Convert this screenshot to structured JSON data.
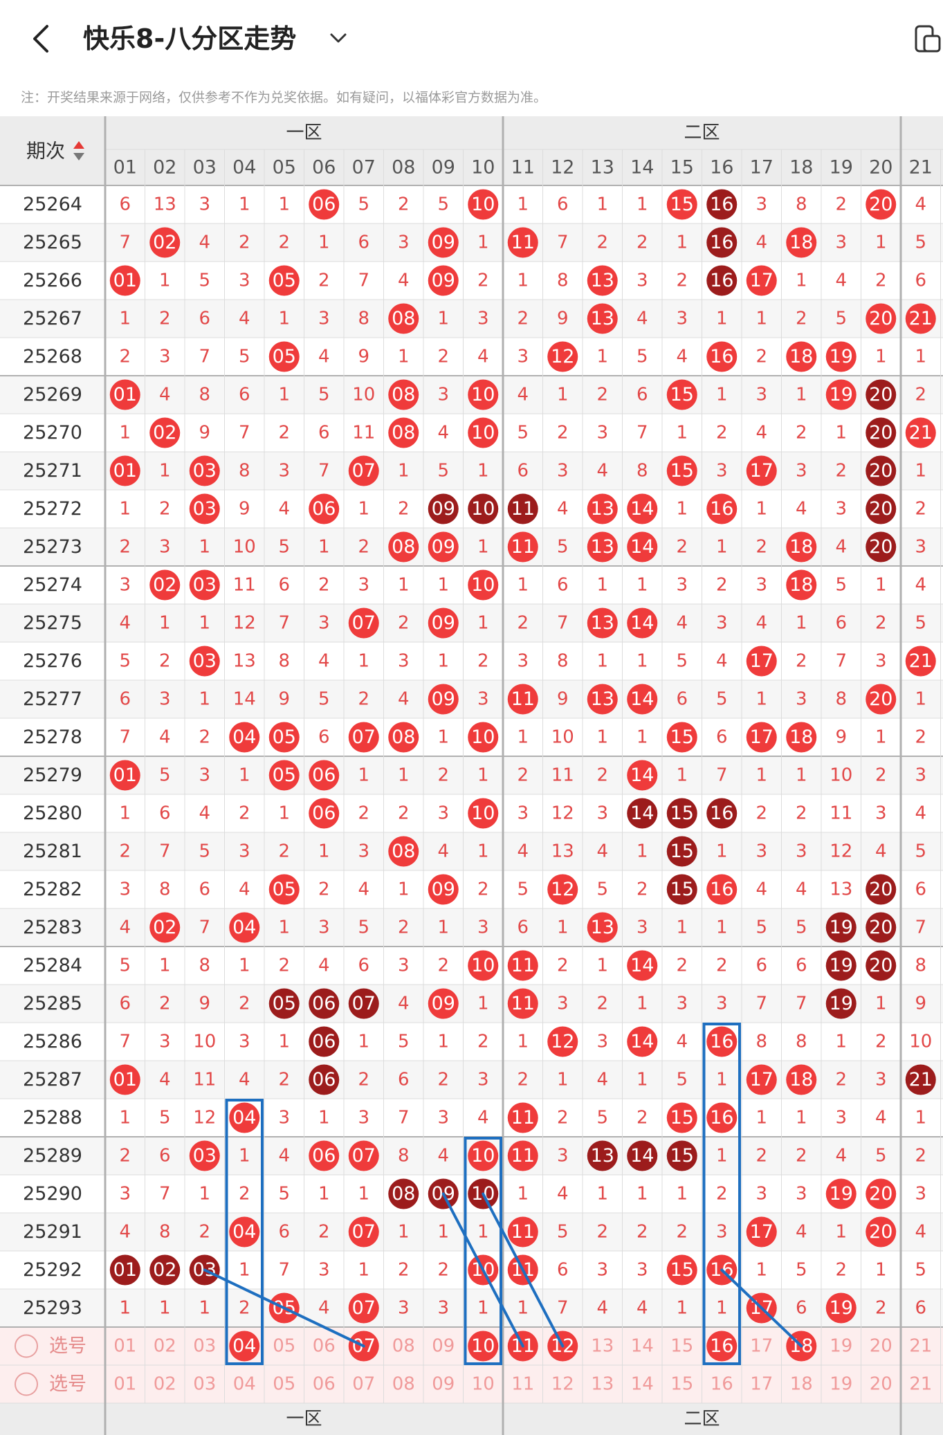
{
  "header": {
    "title": "快乐8-八分区走势",
    "notice": "注：开奖结果来源于网络，仅供参考不作为兑奖依据。如有疑问，以福体彩官方数据为准。"
  },
  "table": {
    "period_header": "期次",
    "zones": [
      "一区",
      "二区"
    ],
    "columns": [
      "01",
      "02",
      "03",
      "04",
      "05",
      "06",
      "07",
      "08",
      "09",
      "10",
      "11",
      "12",
      "13",
      "14",
      "15",
      "16",
      "17",
      "18",
      "19",
      "20",
      "21"
    ],
    "rows": [
      {
        "period": "25264",
        "cells": [
          "6",
          "13",
          "3",
          "1",
          "1",
          "06",
          "5",
          "2",
          "5",
          "10",
          "1",
          "6",
          "1",
          "1",
          "15",
          "16",
          "3",
          "8",
          "2",
          "20",
          "4"
        ],
        "hits": [
          6,
          10,
          15,
          16,
          20
        ],
        "dark": [
          16
        ]
      },
      {
        "period": "25265",
        "cells": [
          "7",
          "02",
          "4",
          "2",
          "2",
          "1",
          "6",
          "3",
          "09",
          "1",
          "11",
          "7",
          "2",
          "2",
          "1",
          "16",
          "4",
          "18",
          "3",
          "1",
          "5"
        ],
        "hits": [
          2,
          9,
          11,
          16,
          18
        ],
        "dark": [
          16
        ]
      },
      {
        "period": "25266",
        "cells": [
          "01",
          "1",
          "5",
          "3",
          "05",
          "2",
          "7",
          "4",
          "09",
          "2",
          "1",
          "8",
          "13",
          "3",
          "2",
          "16",
          "17",
          "1",
          "4",
          "2",
          "6"
        ],
        "hits": [
          1,
          5,
          9,
          13,
          16,
          17
        ],
        "dark": [
          16
        ]
      },
      {
        "period": "25267",
        "cells": [
          "1",
          "2",
          "6",
          "4",
          "1",
          "3",
          "8",
          "08",
          "1",
          "3",
          "2",
          "9",
          "13",
          "4",
          "3",
          "1",
          "1",
          "2",
          "5",
          "20",
          "21"
        ],
        "hits": [
          8,
          13,
          20,
          21
        ],
        "dark": []
      },
      {
        "period": "25268",
        "cells": [
          "2",
          "3",
          "7",
          "5",
          "05",
          "4",
          "9",
          "1",
          "2",
          "4",
          "3",
          "12",
          "1",
          "5",
          "4",
          "16",
          "2",
          "18",
          "19",
          "1",
          "1"
        ],
        "hits": [
          5,
          12,
          16,
          18,
          19
        ],
        "dark": []
      },
      {
        "period": "25269",
        "cells": [
          "01",
          "4",
          "8",
          "6",
          "1",
          "5",
          "10",
          "08",
          "3",
          "10",
          "4",
          "1",
          "2",
          "6",
          "15",
          "1",
          "3",
          "1",
          "19",
          "20",
          "2"
        ],
        "hits": [
          1,
          8,
          10,
          15,
          19,
          20
        ],
        "dark": [
          20
        ]
      },
      {
        "period": "25270",
        "cells": [
          "1",
          "02",
          "9",
          "7",
          "2",
          "6",
          "11",
          "08",
          "4",
          "10",
          "5",
          "2",
          "3",
          "7",
          "1",
          "2",
          "4",
          "2",
          "1",
          "20",
          "21"
        ],
        "hits": [
          2,
          8,
          10,
          20,
          21
        ],
        "dark": [
          20
        ]
      },
      {
        "period": "25271",
        "cells": [
          "01",
          "1",
          "03",
          "8",
          "3",
          "7",
          "07",
          "1",
          "5",
          "1",
          "6",
          "3",
          "4",
          "8",
          "15",
          "3",
          "17",
          "3",
          "2",
          "20",
          "1"
        ],
        "hits": [
          1,
          3,
          7,
          15,
          17,
          20
        ],
        "dark": [
          20
        ]
      },
      {
        "period": "25272",
        "cells": [
          "1",
          "2",
          "03",
          "9",
          "4",
          "06",
          "1",
          "2",
          "09",
          "10",
          "11",
          "4",
          "13",
          "14",
          "1",
          "16",
          "1",
          "4",
          "3",
          "20",
          "2"
        ],
        "hits": [
          3,
          6,
          9,
          10,
          11,
          13,
          14,
          16,
          20
        ],
        "dark": [
          9,
          10,
          11,
          20
        ]
      },
      {
        "period": "25273",
        "cells": [
          "2",
          "3",
          "1",
          "10",
          "5",
          "1",
          "2",
          "08",
          "09",
          "1",
          "11",
          "5",
          "13",
          "14",
          "2",
          "1",
          "2",
          "18",
          "4",
          "20",
          "3"
        ],
        "hits": [
          8,
          9,
          11,
          13,
          14,
          18,
          20
        ],
        "dark": [
          20
        ]
      },
      {
        "period": "25274",
        "cells": [
          "3",
          "02",
          "03",
          "11",
          "6",
          "2",
          "3",
          "1",
          "1",
          "10",
          "1",
          "6",
          "1",
          "1",
          "3",
          "2",
          "3",
          "18",
          "5",
          "1",
          "4"
        ],
        "hits": [
          2,
          3,
          10,
          18
        ],
        "dark": []
      },
      {
        "period": "25275",
        "cells": [
          "4",
          "1",
          "1",
          "12",
          "7",
          "3",
          "07",
          "2",
          "09",
          "1",
          "2",
          "7",
          "13",
          "14",
          "4",
          "3",
          "4",
          "1",
          "6",
          "2",
          "5"
        ],
        "hits": [
          7,
          9,
          13,
          14
        ],
        "dark": []
      },
      {
        "period": "25276",
        "cells": [
          "5",
          "2",
          "03",
          "13",
          "8",
          "4",
          "1",
          "3",
          "1",
          "2",
          "3",
          "8",
          "1",
          "1",
          "5",
          "4",
          "17",
          "2",
          "7",
          "3",
          "21"
        ],
        "hits": [
          3,
          17,
          21
        ],
        "dark": []
      },
      {
        "period": "25277",
        "cells": [
          "6",
          "3",
          "1",
          "14",
          "9",
          "5",
          "2",
          "4",
          "09",
          "3",
          "11",
          "9",
          "13",
          "14",
          "6",
          "5",
          "1",
          "3",
          "8",
          "20",
          "1"
        ],
        "hits": [
          9,
          11,
          13,
          14,
          20
        ],
        "dark": []
      },
      {
        "period": "25278",
        "cells": [
          "7",
          "4",
          "2",
          "04",
          "05",
          "6",
          "07",
          "08",
          "1",
          "10",
          "1",
          "10",
          "1",
          "1",
          "15",
          "6",
          "17",
          "18",
          "9",
          "1",
          "2"
        ],
        "hits": [
          4,
          5,
          7,
          8,
          10,
          15,
          17,
          18
        ],
        "dark": []
      },
      {
        "period": "25279",
        "cells": [
          "01",
          "5",
          "3",
          "1",
          "05",
          "06",
          "1",
          "1",
          "2",
          "1",
          "2",
          "11",
          "2",
          "14",
          "1",
          "7",
          "1",
          "1",
          "10",
          "2",
          "3"
        ],
        "hits": [
          1,
          5,
          6,
          14
        ],
        "dark": []
      },
      {
        "period": "25280",
        "cells": [
          "1",
          "6",
          "4",
          "2",
          "1",
          "06",
          "2",
          "2",
          "3",
          "10",
          "3",
          "12",
          "3",
          "14",
          "15",
          "16",
          "2",
          "2",
          "11",
          "3",
          "4"
        ],
        "hits": [
          6,
          10,
          14,
          15,
          16
        ],
        "dark": [
          14,
          15,
          16
        ]
      },
      {
        "period": "25281",
        "cells": [
          "2",
          "7",
          "5",
          "3",
          "2",
          "1",
          "3",
          "08",
          "4",
          "1",
          "4",
          "13",
          "4",
          "1",
          "15",
          "1",
          "3",
          "3",
          "12",
          "4",
          "5"
        ],
        "hits": [
          8,
          15
        ],
        "dark": [
          15
        ]
      },
      {
        "period": "25282",
        "cells": [
          "3",
          "8",
          "6",
          "4",
          "05",
          "2",
          "4",
          "1",
          "09",
          "2",
          "5",
          "12",
          "5",
          "2",
          "15",
          "16",
          "4",
          "4",
          "13",
          "20",
          "6"
        ],
        "hits": [
          5,
          9,
          12,
          15,
          16,
          20
        ],
        "dark": [
          15,
          20
        ]
      },
      {
        "period": "25283",
        "cells": [
          "4",
          "02",
          "7",
          "04",
          "1",
          "3",
          "5",
          "2",
          "1",
          "3",
          "6",
          "1",
          "13",
          "3",
          "1",
          "1",
          "5",
          "5",
          "19",
          "20",
          "7"
        ],
        "hits": [
          2,
          4,
          13,
          19,
          20
        ],
        "dark": [
          19,
          20
        ]
      },
      {
        "period": "25284",
        "cells": [
          "5",
          "1",
          "8",
          "1",
          "2",
          "4",
          "6",
          "3",
          "2",
          "10",
          "11",
          "2",
          "1",
          "14",
          "2",
          "2",
          "6",
          "6",
          "19",
          "20",
          "8"
        ],
        "hits": [
          10,
          11,
          14,
          19,
          20
        ],
        "dark": [
          19,
          20
        ]
      },
      {
        "period": "25285",
        "cells": [
          "6",
          "2",
          "9",
          "2",
          "05",
          "06",
          "07",
          "4",
          "09",
          "1",
          "11",
          "3",
          "2",
          "1",
          "3",
          "3",
          "7",
          "7",
          "19",
          "1",
          "9"
        ],
        "hits": [
          5,
          6,
          7,
          9,
          11,
          19
        ],
        "dark": [
          5,
          6,
          7,
          19
        ]
      },
      {
        "period": "25286",
        "cells": [
          "7",
          "3",
          "10",
          "3",
          "1",
          "06",
          "1",
          "5",
          "1",
          "2",
          "1",
          "12",
          "3",
          "14",
          "4",
          "16",
          "8",
          "8",
          "1",
          "2",
          "10"
        ],
        "hits": [
          6,
          12,
          14,
          16
        ],
        "dark": [
          6
        ]
      },
      {
        "period": "25287",
        "cells": [
          "01",
          "4",
          "11",
          "4",
          "2",
          "06",
          "2",
          "6",
          "2",
          "3",
          "2",
          "1",
          "4",
          "1",
          "5",
          "1",
          "17",
          "18",
          "2",
          "3",
          "21"
        ],
        "hits": [
          1,
          6,
          17,
          18,
          21
        ],
        "dark": [
          6,
          21
        ]
      },
      {
        "period": "25288",
        "cells": [
          "1",
          "5",
          "12",
          "04",
          "3",
          "1",
          "3",
          "7",
          "3",
          "4",
          "11",
          "2",
          "5",
          "2",
          "15",
          "16",
          "1",
          "1",
          "3",
          "4",
          "1"
        ],
        "hits": [
          4,
          11,
          15,
          16
        ],
        "dark": []
      },
      {
        "period": "25289",
        "cells": [
          "2",
          "6",
          "03",
          "1",
          "4",
          "06",
          "07",
          "8",
          "4",
          "10",
          "11",
          "3",
          "13",
          "14",
          "15",
          "1",
          "2",
          "2",
          "4",
          "5",
          "2"
        ],
        "hits": [
          3,
          6,
          7,
          10,
          11,
          13,
          14,
          15
        ],
        "dark": [
          13,
          14,
          15
        ]
      },
      {
        "period": "25290",
        "cells": [
          "3",
          "7",
          "1",
          "2",
          "5",
          "1",
          "1",
          "08",
          "09",
          "10",
          "1",
          "4",
          "1",
          "1",
          "1",
          "2",
          "3",
          "3",
          "19",
          "20",
          "3"
        ],
        "hits": [
          8,
          9,
          10,
          19,
          20
        ],
        "dark": [
          8,
          9,
          10
        ]
      },
      {
        "period": "25291",
        "cells": [
          "4",
          "8",
          "2",
          "04",
          "6",
          "2",
          "07",
          "1",
          "1",
          "1",
          "11",
          "5",
          "2",
          "2",
          "2",
          "3",
          "17",
          "4",
          "1",
          "20",
          "4"
        ],
        "hits": [
          4,
          7,
          11,
          17,
          20
        ],
        "dark": []
      },
      {
        "period": "25292",
        "cells": [
          "01",
          "02",
          "03",
          "1",
          "7",
          "3",
          "1",
          "2",
          "2",
          "10",
          "11",
          "6",
          "3",
          "3",
          "15",
          "16",
          "1",
          "5",
          "2",
          "1",
          "5"
        ],
        "hits": [
          1,
          2,
          3,
          10,
          11,
          15,
          16
        ],
        "dark": [
          1,
          2,
          3
        ]
      },
      {
        "period": "25293",
        "cells": [
          "1",
          "1",
          "1",
          "2",
          "05",
          "4",
          "07",
          "3",
          "3",
          "1",
          "1",
          "7",
          "4",
          "4",
          "1",
          "1",
          "17",
          "6",
          "19",
          "2",
          "6"
        ],
        "hits": [
          5,
          7,
          17,
          19
        ],
        "dark": []
      }
    ],
    "select_label": "选号",
    "select_rows": [
      {
        "hits": [
          4,
          7,
          10,
          11,
          12,
          16,
          18
        ]
      },
      {
        "hits": []
      }
    ]
  },
  "colors": {
    "hit": "#ef3b3b",
    "hit_dark": "#9c1c1c",
    "number_text": "#e24848",
    "period_text": "#333333",
    "grid_line": "#dcdcdc",
    "zone_line": "#b0b0b0",
    "header_bg": "#ececec",
    "select_bg": "#fdeeee",
    "select_text": "#f09a9a",
    "box_stroke": "#1e6fc0"
  }
}
